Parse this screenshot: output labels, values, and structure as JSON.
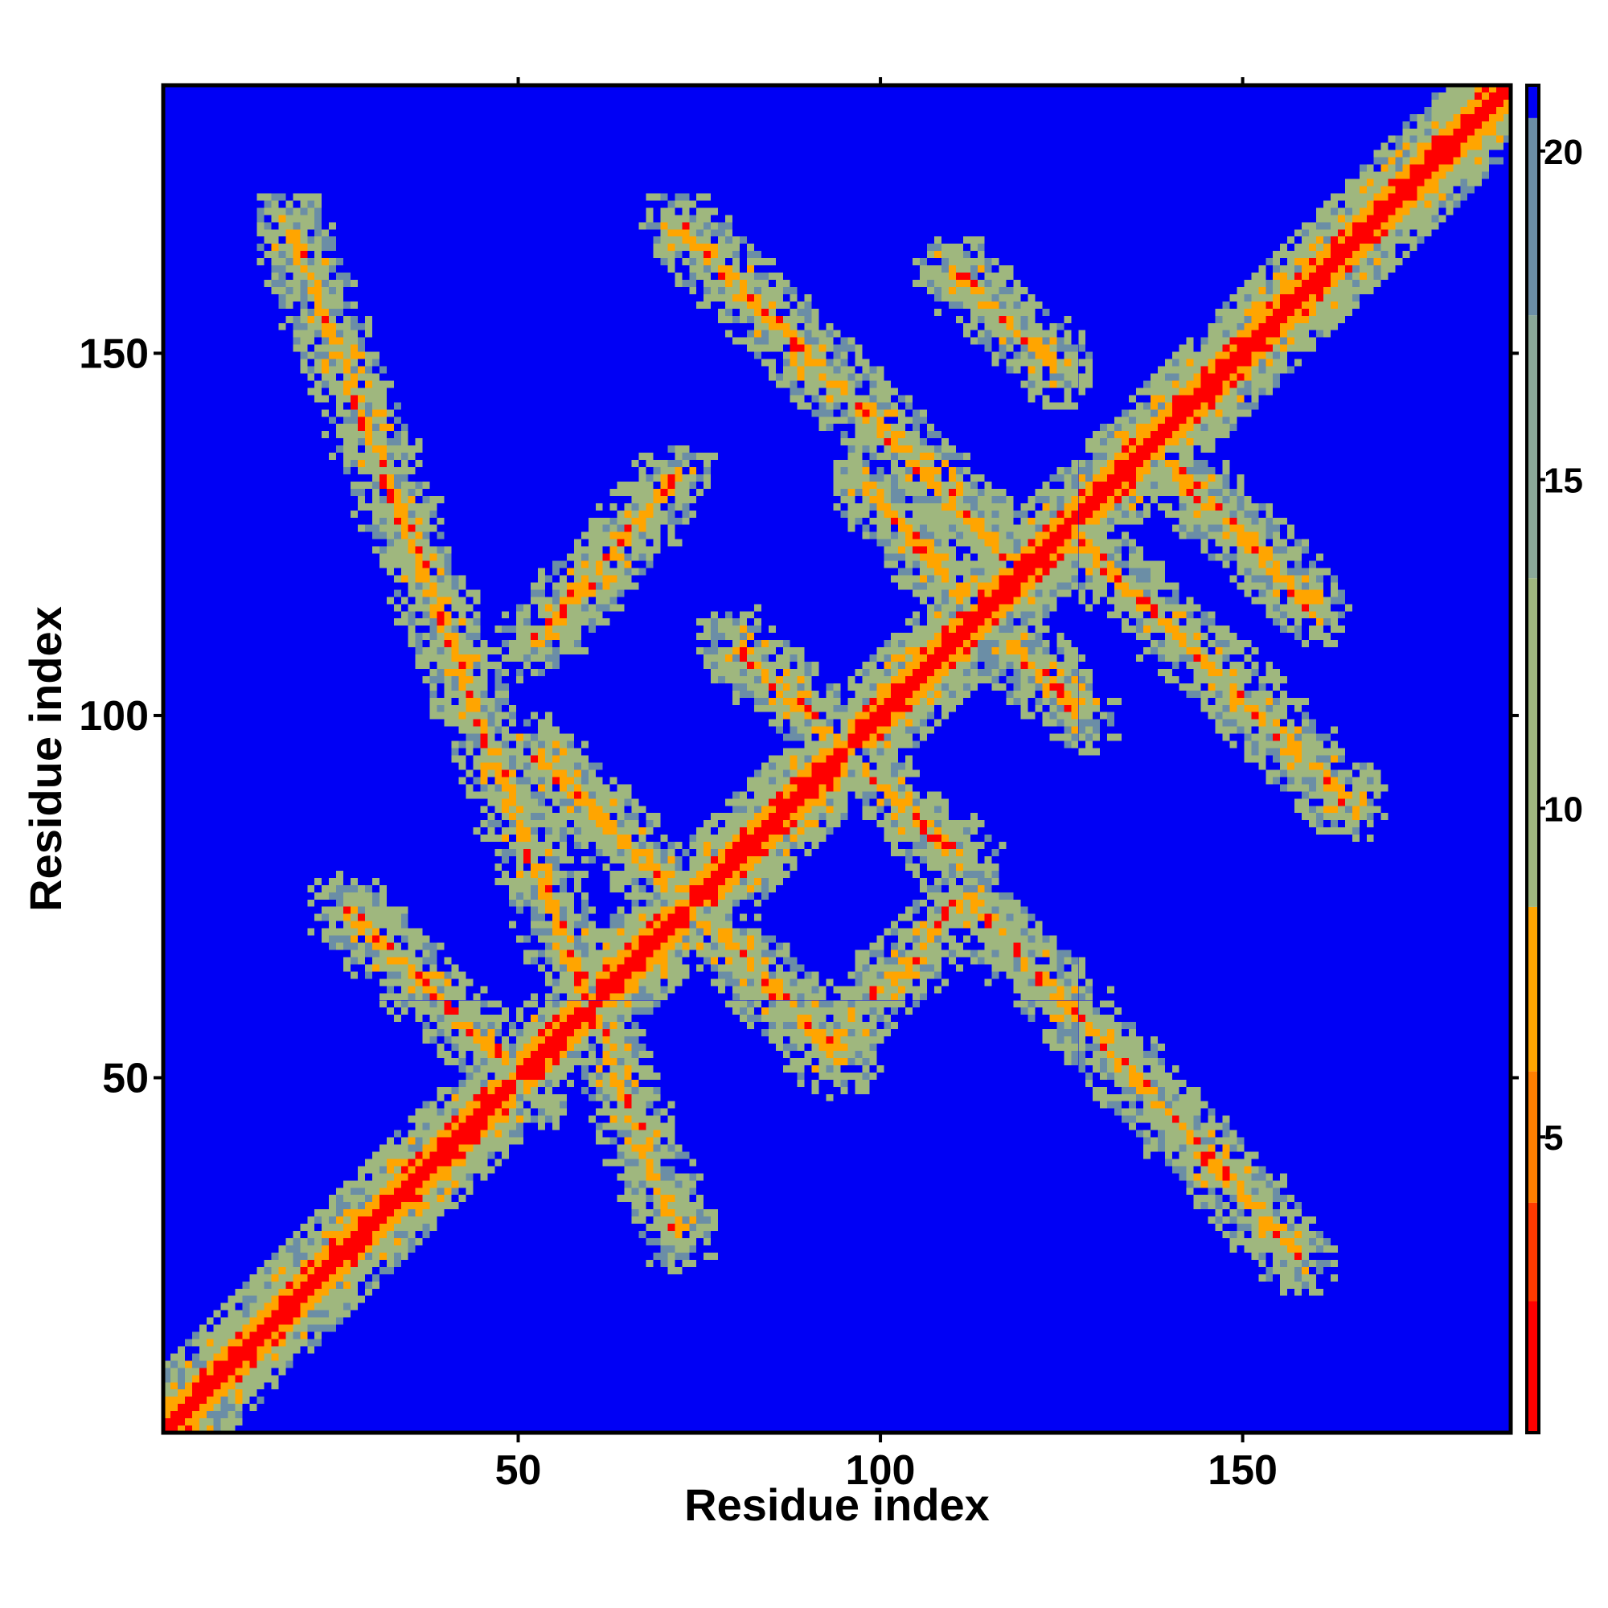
{
  "chart_data": {
    "type": "heatmap",
    "title": "",
    "xlabel": "Residue index",
    "ylabel": "Residue index",
    "n_residues": 187,
    "xlim": [
      1,
      187
    ],
    "ylim": [
      1,
      187
    ],
    "x_ticks": [
      50,
      100,
      150
    ],
    "y_ticks": [
      50,
      100,
      150
    ],
    "colorbar": {
      "range": [
        0.5,
        21
      ],
      "ticks": [
        5,
        10,
        15,
        20
      ],
      "colors": {
        "very_near": "#ff0000",
        "near": "#ffa500",
        "mid": "#9fb77e",
        "far": "#6b8ea6",
        "background": "#0000f5"
      }
    },
    "bands": [
      {
        "kind": "diagonal",
        "description": "main diagonal contact band",
        "from": [
          1,
          1
        ],
        "to": [
          187,
          187
        ]
      },
      {
        "kind": "antidiagonal",
        "from": [
          18,
          168
        ],
        "to": [
          72,
          28
        ]
      },
      {
        "kind": "antidiagonal",
        "from": [
          26,
          73
        ],
        "to": [
          52,
          48
        ]
      },
      {
        "kind": "antidiagonal",
        "from": [
          52,
          95
        ],
        "to": [
          95,
          52
        ]
      },
      {
        "kind": "antidiagonal",
        "from": [
          80,
          110
        ],
        "to": [
          112,
          79
        ]
      },
      {
        "kind": "antidiagonal",
        "from": [
          72,
          168
        ],
        "to": [
          118,
          122
        ]
      },
      {
        "kind": "antidiagonal",
        "from": [
          98,
          132
        ],
        "to": [
          112,
          116
        ]
      },
      {
        "kind": "antidiagonal",
        "from": [
          118,
          110
        ],
        "to": [
          128,
          100
        ]
      },
      {
        "kind": "antidiagonal",
        "from": [
          110,
          162
        ],
        "to": [
          125,
          148
        ]
      },
      {
        "kind": "antidiagonal",
        "from": [
          126,
          126
        ],
        "to": [
          165,
          88
        ]
      },
      {
        "kind": "antidiagonal",
        "from": [
          140,
          135
        ],
        "to": [
          160,
          115
        ]
      },
      {
        "kind": "antidiagonal",
        "from": [
          112,
          75
        ],
        "to": [
          158,
          25
        ]
      },
      {
        "kind": "diagonal",
        "from": [
          52,
          110
        ],
        "to": [
          72,
          133
        ]
      },
      {
        "kind": "diagonal",
        "from": [
          92,
          53
        ],
        "to": [
          112,
          75
        ]
      }
    ]
  }
}
